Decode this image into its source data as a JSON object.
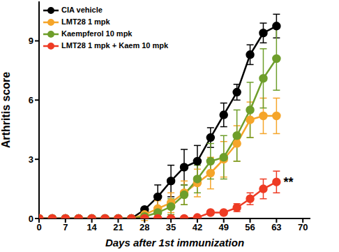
{
  "chart_data": {
    "type": "line",
    "x_label": "Days after 1st immunization",
    "y_label": "Arthritis score",
    "xlim": [
      0,
      72
    ],
    "xticks": [
      0,
      7,
      14,
      21,
      28,
      35,
      42,
      49,
      56,
      63,
      70
    ],
    "ylim": [
      0,
      11
    ],
    "yticks": [
      0,
      3,
      6,
      9
    ],
    "legend": "upper left",
    "marker": "circle",
    "x": [
      0,
      3.5,
      7,
      10.5,
      14,
      17.5,
      21,
      24.5,
      28,
      31.5,
      35,
      38.5,
      42,
      45.5,
      49,
      52.5,
      56,
      59.5,
      63
    ],
    "series": [
      {
        "name": "CIA vehicle",
        "color": "#000000",
        "values": [
          0,
          0,
          0,
          0,
          0,
          0,
          0,
          0,
          0.45,
          1.1,
          1.9,
          2.6,
          2.9,
          4.1,
          5.25,
          6.4,
          8.3,
          9.4,
          9.75
        ],
        "errors": [
          0,
          0,
          0,
          0,
          0,
          0,
          0,
          0,
          0.1,
          0.6,
          0.8,
          0.9,
          0.8,
          0.5,
          0.6,
          0.4,
          0.5,
          0.5,
          0.6
        ]
      },
      {
        "name": "LMT28 1 mpk",
        "color": "#f5a52a",
        "values": [
          0,
          0,
          0,
          0,
          0,
          0,
          0,
          0,
          0.2,
          0.5,
          0.8,
          1.3,
          1.8,
          2.3,
          3.0,
          3.8,
          5.0,
          5.2,
          5.2
        ],
        "errors": [
          0,
          0,
          0,
          0,
          0,
          0,
          0,
          0,
          0.3,
          0.4,
          0.5,
          0.6,
          0.7,
          0.8,
          0.9,
          0.9,
          0.9,
          0.9,
          0.9
        ]
      },
      {
        "name": "Kaempferol 10 mpk",
        "color": "#6e9e2b",
        "values": [
          0,
          0,
          0,
          0,
          0,
          0,
          0,
          0,
          0.1,
          0.3,
          0.6,
          1.2,
          2.0,
          2.9,
          3.1,
          4.2,
          5.5,
          7.1,
          8.1
        ],
        "errors": [
          0,
          0,
          0,
          0,
          0,
          0,
          0,
          0,
          0.1,
          0.3,
          0.4,
          0.5,
          0.7,
          0.9,
          1.1,
          1.3,
          1.4,
          1.5,
          1.6
        ]
      },
      {
        "name": "LMT28 1 mpk + Kaem 10 mpk",
        "color": "#ee3b24",
        "values": [
          0,
          0,
          0,
          0,
          0,
          0,
          0,
          0,
          0,
          0,
          0,
          0,
          0.05,
          0.3,
          0.3,
          0.55,
          1.0,
          1.5,
          1.85
        ],
        "errors": [
          0,
          0,
          0,
          0,
          0,
          0,
          0,
          0,
          0,
          0,
          0,
          0,
          0,
          0.1,
          0.1,
          0.2,
          0.3,
          0.5,
          0.55
        ]
      }
    ],
    "annotations": [
      {
        "text": "**",
        "x": 63,
        "y": 1.85
      }
    ]
  }
}
